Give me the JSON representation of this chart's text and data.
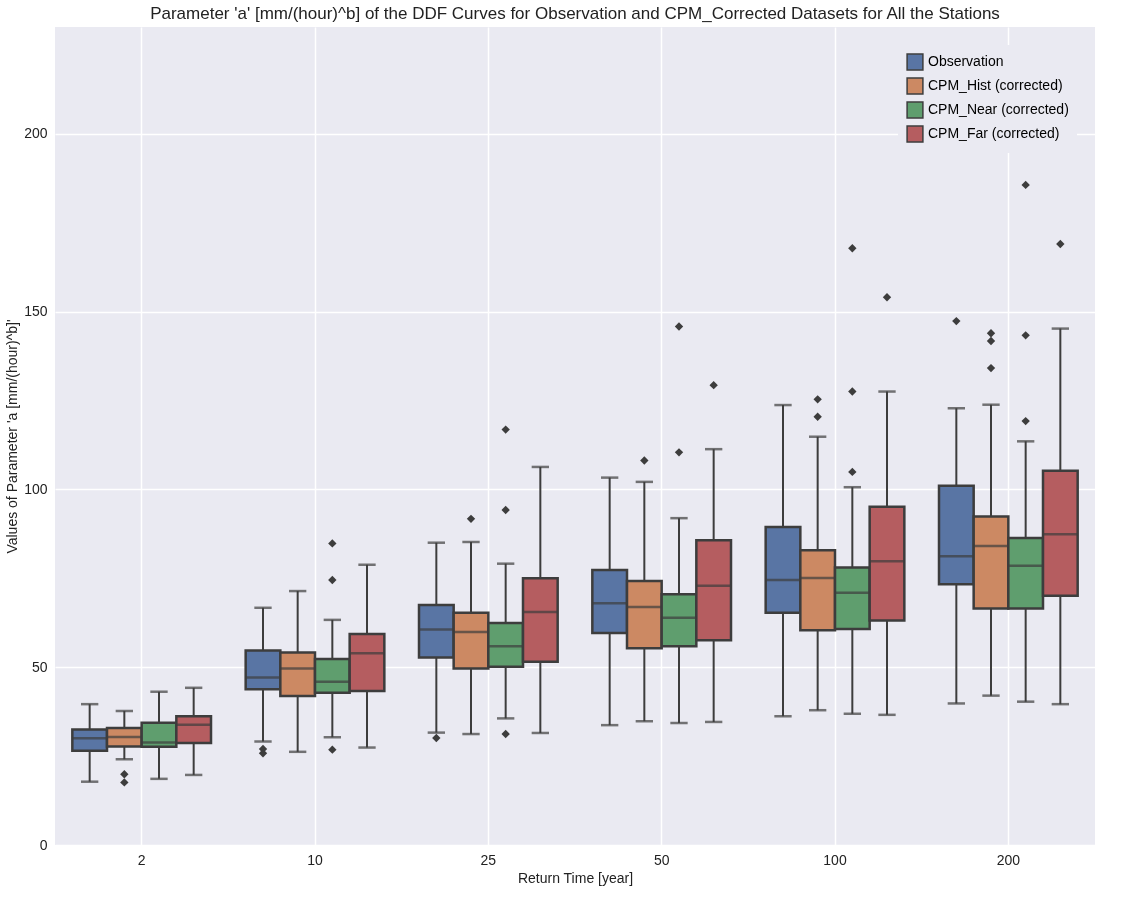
{
  "chart_data": {
    "type": "box",
    "title": "Parameter 'a' [mm/(hour)^b] of the DDF Curves for Observation and CPM_Corrected Datasets for All the Stations",
    "xlabel": "Return Time [year]",
    "ylabel": "Values of Parameter 'a [mm/(hour)^b]'",
    "categories": [
      "2",
      "10",
      "25",
      "50",
      "100",
      "200"
    ],
    "ylim": [
      0,
      230
    ],
    "yticks": [
      0,
      50,
      100,
      150,
      200
    ],
    "grid": true,
    "legend": "top right",
    "series": [
      {
        "name": "Observation",
        "color": "#5975a4",
        "boxes": [
          {
            "low": 17.8,
            "q1": 26.5,
            "median": 30.0,
            "q3": 32.5,
            "high": 39.6
          },
          {
            "low": 29.1,
            "q1": 43.8,
            "median": 47.1,
            "q3": 54.7,
            "high": 66.7,
            "outliers": [
              27.0,
              25.8
            ]
          },
          {
            "low": 31.6,
            "q1": 52.7,
            "median": 60.6,
            "q3": 67.5,
            "high": 85.0,
            "outliers": [
              30.1
            ]
          },
          {
            "low": 33.7,
            "q1": 59.6,
            "median": 68.0,
            "q3": 77.3,
            "high": 103.3
          },
          {
            "low": 36.2,
            "q1": 65.3,
            "median": 74.5,
            "q3": 89.4,
            "high": 123.7
          },
          {
            "low": 39.8,
            "q1": 73.3,
            "median": 81.2,
            "q3": 101.0,
            "high": 122.8,
            "outliers": [
              147.3
            ]
          }
        ]
      },
      {
        "name": "CPM_Hist (corrected)",
        "color": "#cc8963",
        "boxes": [
          {
            "low": 24.1,
            "q1": 27.7,
            "median": 30.4,
            "q3": 32.9,
            "high": 37.7,
            "outliers": [
              19.9,
              17.6
            ]
          },
          {
            "low": 26.2,
            "q1": 41.9,
            "median": 49.6,
            "q3": 54.1,
            "high": 71.4
          },
          {
            "low": 31.2,
            "q1": 49.6,
            "median": 59.9,
            "q3": 65.3,
            "high": 85.2,
            "outliers": [
              91.7
            ]
          },
          {
            "low": 34.8,
            "q1": 55.3,
            "median": 66.9,
            "q3": 74.2,
            "high": 102.1,
            "outliers": [
              108.1
            ]
          },
          {
            "low": 37.9,
            "q1": 60.4,
            "median": 75.1,
            "q3": 82.9,
            "high": 114.8,
            "outliers": [
              125.3,
              120.4
            ]
          },
          {
            "low": 42.0,
            "q1": 66.5,
            "median": 84.1,
            "q3": 92.4,
            "high": 123.8,
            "outliers": [
              143.9,
              141.7,
              134.1
            ]
          }
        ]
      },
      {
        "name": "CPM_Near (corrected)",
        "color": "#5f9e6e",
        "boxes": [
          {
            "low": 18.6,
            "q1": 27.6,
            "median": 28.8,
            "q3": 34.4,
            "high": 43.1
          },
          {
            "low": 30.3,
            "q1": 42.8,
            "median": 45.9,
            "q3": 52.3,
            "high": 63.3,
            "outliers": [
              74.5,
              84.8,
              26.8
            ]
          },
          {
            "low": 35.6,
            "q1": 50.1,
            "median": 55.9,
            "q3": 62.4,
            "high": 79.1,
            "outliers": [
              116.8,
              94.2,
              31.2
            ]
          },
          {
            "low": 34.3,
            "q1": 55.9,
            "median": 63.9,
            "q3": 70.5,
            "high": 91.9,
            "outliers": [
              110.4,
              145.8
            ]
          },
          {
            "low": 36.9,
            "q1": 60.7,
            "median": 70.9,
            "q3": 78.0,
            "high": 100.6,
            "outliers": [
              104.9,
              127.5,
              167.8
            ]
          },
          {
            "low": 40.3,
            "q1": 66.5,
            "median": 78.5,
            "q3": 86.3,
            "high": 113.5,
            "outliers": [
              119.2,
              143.3,
              185.6
            ]
          }
        ]
      },
      {
        "name": "CPM_Far (corrected)",
        "color": "#b55d60",
        "boxes": [
          {
            "low": 19.7,
            "q1": 28.7,
            "median": 33.8,
            "q3": 36.2,
            "high": 44.2
          },
          {
            "low": 27.4,
            "q1": 43.3,
            "median": 53.9,
            "q3": 59.3,
            "high": 78.8
          },
          {
            "low": 31.5,
            "q1": 51.5,
            "median": 65.5,
            "q3": 75.0,
            "high": 106.3
          },
          {
            "low": 34.6,
            "q1": 57.6,
            "median": 72.9,
            "q3": 85.7,
            "high": 111.3,
            "outliers": [
              129.3
            ]
          },
          {
            "low": 36.6,
            "q1": 63.1,
            "median": 79.8,
            "q3": 95.1,
            "high": 127.5,
            "outliers": [
              154.0
            ]
          },
          {
            "low": 39.6,
            "q1": 70.1,
            "median": 87.4,
            "q3": 105.2,
            "high": 145.2,
            "outliers": [
              169.0
            ]
          }
        ]
      }
    ]
  }
}
